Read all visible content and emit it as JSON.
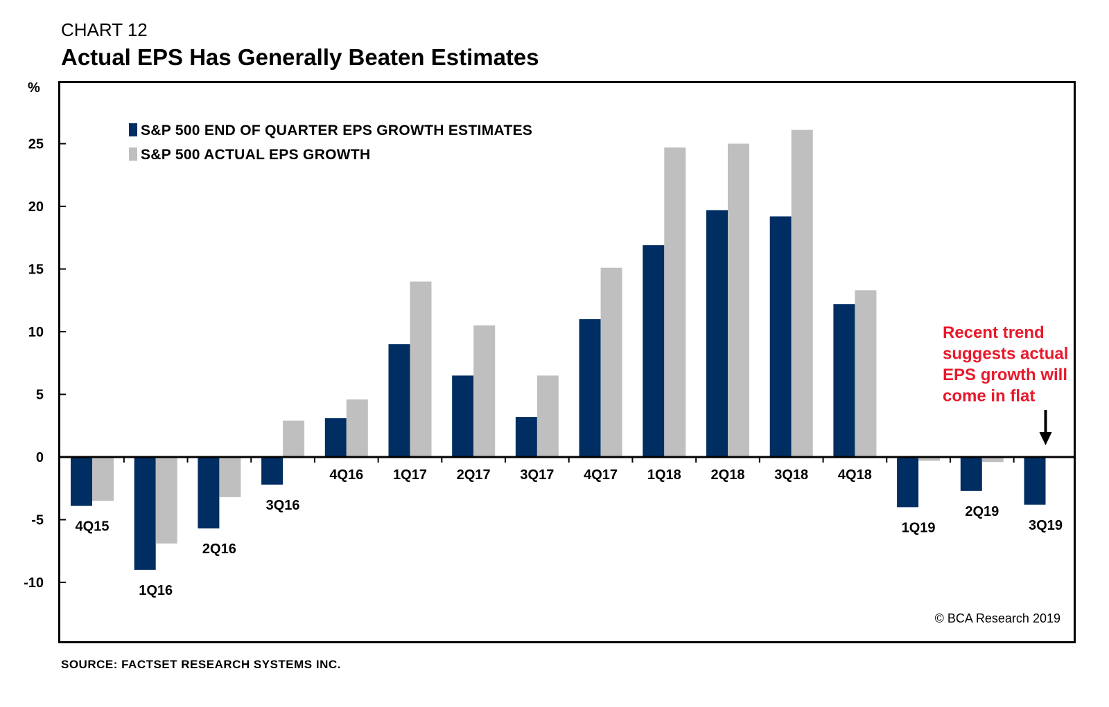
{
  "header": {
    "chart_label": "CHART 12",
    "title": "Actual EPS Has Generally Beaten Estimates"
  },
  "source": "SOURCE: FACTSET RESEARCH SYSTEMS INC.",
  "copyright": "© BCA Research 2019",
  "annotation": {
    "lines": [
      "Recent trend",
      "suggests actual",
      "EPS growth will",
      "come in flat"
    ],
    "color": "#e8192c"
  },
  "colors": {
    "estimate": "#002d62",
    "actual": "#bfbfbf"
  },
  "chart_data": {
    "type": "bar",
    "ylabel": "%",
    "ylim": [
      -15,
      30
    ],
    "yticks": [
      -10,
      -5,
      0,
      5,
      10,
      15,
      20,
      25
    ],
    "categories": [
      "4Q15",
      "1Q16",
      "2Q16",
      "3Q16",
      "4Q16",
      "1Q17",
      "2Q17",
      "3Q17",
      "4Q17",
      "1Q18",
      "2Q18",
      "3Q18",
      "4Q18",
      "1Q19",
      "2Q19",
      "3Q19"
    ],
    "series": [
      {
        "name": "S&P 500 END OF QUARTER EPS GROWTH ESTIMATES",
        "values": [
          -3.9,
          -9.0,
          -5.7,
          -2.2,
          3.1,
          9.0,
          6.5,
          3.2,
          11.0,
          16.9,
          19.7,
          19.2,
          12.2,
          -4.0,
          -2.7,
          -3.8
        ]
      },
      {
        "name": "S&P 500 ACTUAL EPS GROWTH",
        "values": [
          -3.5,
          -6.9,
          -3.2,
          2.9,
          4.6,
          14.0,
          10.5,
          6.5,
          15.1,
          24.7,
          25.0,
          26.1,
          13.3,
          -0.3,
          -0.4,
          null
        ]
      }
    ],
    "legend_position": "top-left",
    "grid": false
  }
}
